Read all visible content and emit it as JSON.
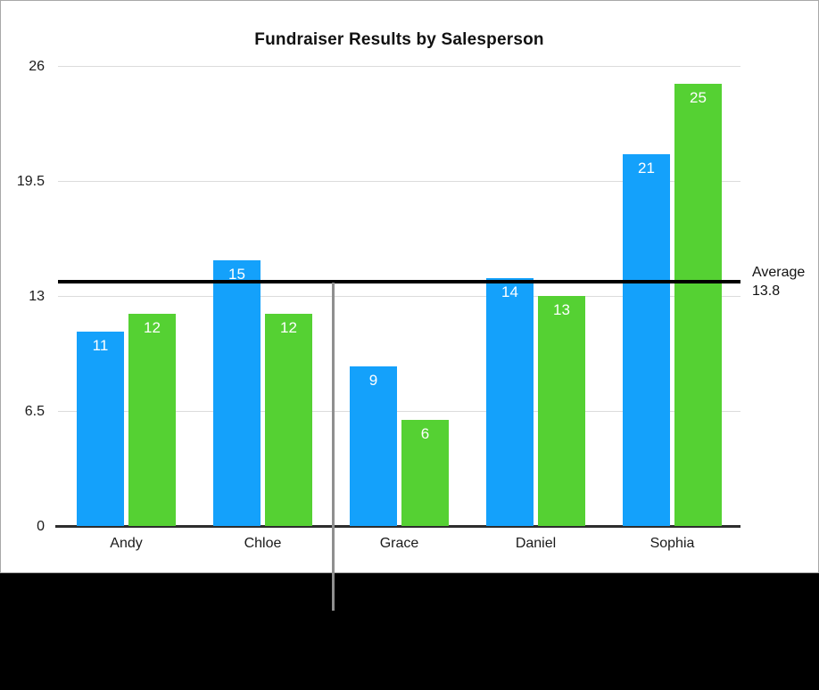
{
  "figure": {
    "panel_background": "#ffffff",
    "panel_border_color": "#a8a8a8",
    "bottom_band_color": "#000000",
    "vertical_rule_color": "#8f8f8f"
  },
  "chart_data": {
    "type": "bar",
    "title": "Fundraiser Results by Salesperson",
    "categories": [
      "Andy",
      "Chloe",
      "Grace",
      "Daniel",
      "Sophia"
    ],
    "series": [
      {
        "name": "blue-series",
        "color": "#14a1fb",
        "values": [
          11,
          15,
          9,
          14,
          21
        ]
      },
      {
        "name": "green-series",
        "color": "#55d133",
        "values": [
          12,
          12,
          6,
          13,
          25
        ]
      }
    ],
    "ylim": [
      0,
      26
    ],
    "yticks": [
      "0",
      "6.5",
      "13",
      "19.5",
      "26"
    ],
    "grid": true,
    "legend": false,
    "value_labels": true,
    "value_label_color": "#ffffff",
    "average_line": {
      "value": 13.8,
      "label_line1": "Average",
      "label_line2": "13.8",
      "color": "#000000"
    }
  }
}
